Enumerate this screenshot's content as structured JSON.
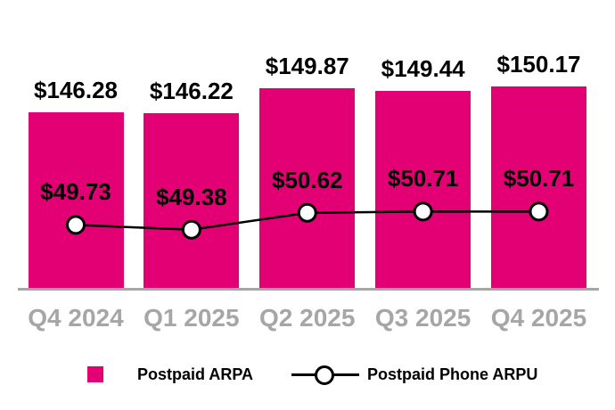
{
  "chart_data": {
    "type": "bar",
    "subtype": "bar-with-line-overlay",
    "categories": [
      "Q4 2024",
      "Q1 2025",
      "Q2 2025",
      "Q3 2025",
      "Q4 2025"
    ],
    "series": [
      {
        "name": "Postpaid ARPA",
        "type": "bar",
        "values": [
          146.28,
          146.22,
          149.87,
          149.44,
          150.17
        ],
        "labels": [
          "$146.28",
          "$146.22",
          "$149.87",
          "$149.44",
          "$150.17"
        ],
        "color": "#E20074"
      },
      {
        "name": "Postpaid Phone ARPU",
        "type": "line",
        "values": [
          49.73,
          49.38,
          50.62,
          50.71,
          50.71
        ],
        "labels": [
          "$49.73",
          "$49.38",
          "$50.62",
          "$50.71",
          "$50.71"
        ],
        "color": "#000000",
        "marker": "circle",
        "marker_fill": "#FFFFFF"
      }
    ],
    "title": "",
    "xlabel": "",
    "ylabel": "",
    "legend_position": "bottom",
    "grid": false,
    "bar_axis_truncated": true,
    "bar_ylim": [
      120,
      153
    ]
  },
  "colors": {
    "bar": "#E20074",
    "line": "#000000",
    "marker_fill": "#FFFFFF",
    "axis_line": "#A6A6A6",
    "tick_labels": "#A6A6A6",
    "value_labels": "#000000",
    "background": "#FFFFFF"
  }
}
